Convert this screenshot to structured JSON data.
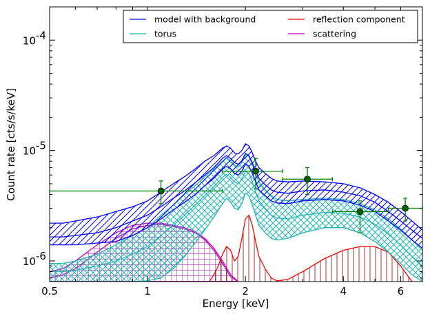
{
  "chart_data": {
    "type": "line",
    "xlabel": "Energy [keV]",
    "ylabel": "Count rate [cts/s/keV]",
    "xscale": "log",
    "yscale": "log",
    "xlim": [
      0.5,
      7.0
    ],
    "ylim": [
      6.5e-07,
      0.0002
    ],
    "x_ticks": [
      {
        "value": 0.5,
        "label": "0.5"
      },
      {
        "value": 1,
        "label": "1"
      },
      {
        "value": 2,
        "label": "2"
      },
      {
        "value": 4,
        "label": "4"
      },
      {
        "value": 6,
        "label": "6"
      }
    ],
    "y_ticks": [
      {
        "value": 1e-06,
        "base": "10",
        "exp": "-6"
      },
      {
        "value": 1e-05,
        "base": "10",
        "exp": "-5"
      },
      {
        "value": 0.0001,
        "base": "10",
        "exp": "-4"
      }
    ],
    "legend": {
      "placement": "top-right",
      "columns": 2,
      "entries": [
        {
          "label": "model with background",
          "color": "#0000ff"
        },
        {
          "label": "reflection component",
          "color": "#ff0000"
        },
        {
          "label": "torus",
          "color": "#1fb5b5"
        },
        {
          "label": "scattering",
          "color": "#c000c0"
        }
      ]
    },
    "series": [
      {
        "id": "model",
        "color": "#0000ff",
        "hatch": "diagonal",
        "x": [
          0.5,
          0.55,
          0.6,
          0.7,
          0.8,
          0.9,
          1.0,
          1.1,
          1.2,
          1.3,
          1.4,
          1.5,
          1.6,
          1.7,
          1.75,
          1.8,
          1.85,
          1.9,
          1.95,
          2.0,
          2.05,
          2.1,
          2.15,
          2.2,
          2.3,
          2.4,
          2.5,
          2.7,
          3.0,
          3.5,
          4.0,
          4.5,
          5.0,
          5.5,
          6.0,
          6.5,
          7.0
        ],
        "upper": [
          2.2e-06,
          2.2e-06,
          2.3e-06,
          2.5e-06,
          2.8e-06,
          3.1e-06,
          3.5e-06,
          4.2e-06,
          5e-06,
          5.8e-06,
          6.8e-06,
          8e-06,
          9e-06,
          1.05e-05,
          1.1e-05,
          1.05e-05,
          9.5e-06,
          9.3e-06,
          1e-05,
          1.15e-05,
          1.1e-05,
          9.5e-06,
          8e-06,
          7e-06,
          6.2e-06,
          5.6e-06,
          5.3e-06,
          5.2e-06,
          5.3e-06,
          5.2e-06,
          5e-06,
          4.6e-06,
          4e-06,
          3.4e-06,
          2.8e-06,
          2.3e-06,
          1.9e-06
        ],
        "lower": [
          1.4e-06,
          1.4e-06,
          1.4e-06,
          1.45e-06,
          1.5e-06,
          1.7e-06,
          2e-06,
          2.4e-06,
          2.9e-06,
          3.4e-06,
          4e-06,
          4.8e-06,
          5.6e-06,
          6.8e-06,
          7.2e-06,
          6.8e-06,
          6.2e-06,
          6e-06,
          6.5e-06,
          7.6e-06,
          7.2e-06,
          6.2e-06,
          5.2e-06,
          4.4e-06,
          3.9e-06,
          3.5e-06,
          3.35e-06,
          3.3e-06,
          3.5e-06,
          3.6e-06,
          3.5e-06,
          3.2e-06,
          2.8e-06,
          2.3e-06,
          1.9e-06,
          1.55e-06,
          1.3e-06
        ],
        "mid": [
          1.65e-06,
          1.65e-06,
          1.7e-06,
          1.8e-06,
          2e-06,
          2.3e-06,
          2.6e-06,
          3.1e-06,
          3.7e-06,
          4.3e-06,
          5.1e-06,
          6e-06,
          7e-06,
          8.5e-06,
          9e-06,
          8.5e-06,
          7.8e-06,
          7.5e-06,
          8.1e-06,
          9.4e-06,
          9e-06,
          7.7e-06,
          6.5e-06,
          5.6e-06,
          4.9e-06,
          4.4e-06,
          4.2e-06,
          4.1e-06,
          4.3e-06,
          4.4e-06,
          4.2e-06,
          3.9e-06,
          3.4e-06,
          2.8e-06,
          2.3e-06,
          1.9e-06,
          1.6e-06
        ]
      },
      {
        "id": "torus",
        "color": "#1fb5b5",
        "hatch": "cross",
        "x": [
          0.5,
          0.55,
          0.6,
          0.7,
          0.8,
          0.9,
          1.0,
          1.1,
          1.2,
          1.3,
          1.4,
          1.5,
          1.6,
          1.7,
          1.75,
          1.8,
          1.85,
          1.9,
          1.95,
          2.0,
          2.05,
          2.1,
          2.15,
          2.2,
          2.3,
          2.4,
          2.5,
          2.7,
          3.0,
          3.5,
          4.0,
          4.5,
          5.0,
          5.5,
          6.0,
          6.5,
          7.0
        ],
        "upper": [
          9.5e-07,
          9.5e-07,
          1e-06,
          1.15e-06,
          1.4e-06,
          1.7e-06,
          2e-06,
          2.6e-06,
          3.2e-06,
          4e-06,
          4.8e-06,
          5.8e-06,
          6.8e-06,
          8e-06,
          8.6e-06,
          8.1e-06,
          7.4e-06,
          7.1e-06,
          7.8e-06,
          9.2e-06,
          8.8e-06,
          7.5e-06,
          6.1e-06,
          5.2e-06,
          4.4e-06,
          3.9e-06,
          3.6e-06,
          3.5e-06,
          3.6e-06,
          3.7e-06,
          3.6e-06,
          3.3e-06,
          2.9e-06,
          2.4e-06,
          1.95e-06,
          1.55e-06,
          1.25e-06
        ],
        "lower": [
          6.5e-07,
          6.5e-07,
          6.5e-07,
          6.5e-07,
          6.5e-07,
          6.5e-07,
          6.6e-07,
          7e-07,
          8.5e-07,
          1.1e-06,
          1.45e-06,
          1.9e-06,
          2.5e-06,
          3.3e-06,
          3.7e-06,
          3.4e-06,
          3e-06,
          2.9e-06,
          3.3e-06,
          4.1e-06,
          3.9e-06,
          3.2e-06,
          2.6e-06,
          2.1e-06,
          1.8e-06,
          1.6e-06,
          1.55e-06,
          1.6e-06,
          1.8e-06,
          2e-06,
          2e-06,
          1.8e-06,
          1.5e-06,
          1.2e-06,
          9.5e-07,
          7.5e-07,
          6.5e-07
        ],
        "mid": [
          8e-07,
          8e-07,
          8.2e-07,
          9e-07,
          1e-06,
          1.15e-06,
          1.35e-06,
          1.7e-06,
          2.1e-06,
          2.6e-06,
          3.2e-06,
          3.9e-06,
          4.7e-06,
          5.7e-06,
          6.1e-06,
          5.7e-06,
          5.2e-06,
          5e-06,
          5.5e-06,
          6.5e-06,
          6.2e-06,
          5.2e-06,
          4.2e-06,
          3.5e-06,
          3e-06,
          2.6e-06,
          2.45e-06,
          2.4e-06,
          2.6e-06,
          2.75e-06,
          2.7e-06,
          2.5e-06,
          2.15e-06,
          1.75e-06,
          1.4e-06,
          1.1e-06,
          9e-07
        ]
      },
      {
        "id": "scattering",
        "color": "#c000c0",
        "hatch": "grid",
        "x": [
          0.5,
          0.55,
          0.6,
          0.7,
          0.8,
          0.9,
          1.0,
          1.1,
          1.2,
          1.3,
          1.4,
          1.5,
          1.6,
          1.7,
          1.8,
          1.9
        ],
        "upper": [
          8e-07,
          8.5e-07,
          1e-06,
          1.4e-06,
          1.8e-06,
          2.1e-06,
          2.2e-06,
          2.2e-06,
          2.1e-06,
          2e-06,
          1.85e-06,
          1.6e-06,
          1.3e-06,
          1e-06,
          7.5e-07,
          6.5e-07
        ],
        "lower": [
          6.5e-07,
          6.5e-07,
          6.5e-07,
          6.5e-07,
          6.5e-07,
          6.5e-07,
          6.5e-07,
          6.5e-07,
          6.5e-07,
          6.5e-07,
          6.5e-07,
          6.5e-07,
          6.5e-07,
          6.5e-07,
          6.5e-07,
          6.5e-07
        ],
        "mid": [
          7e-07,
          7.5e-07,
          8.5e-07,
          1.2e-06,
          1.6e-06,
          1.95e-06,
          2.1e-06,
          2.15e-06,
          2.05e-06,
          1.95e-06,
          1.8e-06,
          1.55e-06,
          1.25e-06,
          9.5e-07,
          7.2e-07,
          6.5e-07
        ]
      },
      {
        "id": "reflection",
        "color": "#ff0000",
        "hatch": "vertical",
        "hatch_color": "#a03030",
        "x": [
          1.55,
          1.6,
          1.65,
          1.7,
          1.75,
          1.8,
          1.85,
          1.9,
          1.95,
          2.0,
          2.05,
          2.1,
          2.15,
          2.2,
          2.3,
          2.4,
          2.5,
          2.7,
          3.0,
          3.5,
          4.0,
          4.5,
          5.0,
          5.5,
          6.0,
          6.5
        ],
        "upper": [
          6.5e-07,
          7.5e-07,
          9e-07,
          1.15e-06,
          1.35e-06,
          1.25e-06,
          1e-06,
          1.1e-06,
          1.6e-06,
          2.4e-06,
          2.6e-06,
          2.1e-06,
          1.5e-06,
          1.1e-06,
          8.5e-07,
          7e-07,
          6.6e-07,
          6.8e-07,
          8e-07,
          1.05e-06,
          1.25e-06,
          1.35e-06,
          1.35e-06,
          1.2e-06,
          9e-07,
          6.5e-07
        ]
      }
    ],
    "data_points": {
      "color": "#008000",
      "marker_color": "#006400",
      "points": [
        {
          "x": 1.1,
          "y": 4.3e-06,
          "xlo": 0.5,
          "xhi": 1.7,
          "ylo": 3.3e-06,
          "yhi": 5.3e-06
        },
        {
          "x": 2.15,
          "y": 6.5e-06,
          "xlo": 1.7,
          "xhi": 2.6,
          "ylo": 4.5e-06,
          "yhi": 8.5e-06
        },
        {
          "x": 3.1,
          "y": 5.5e-06,
          "xlo": 2.6,
          "xhi": 3.7,
          "ylo": 4e-06,
          "yhi": 7e-06
        },
        {
          "x": 4.5,
          "y": 2.8e-06,
          "xlo": 3.7,
          "xhi": 5.5,
          "ylo": 1.8e-06,
          "yhi": 3.5e-06
        },
        {
          "x": 6.2,
          "y": 3e-06,
          "xlo": 5.5,
          "xhi": 7.0,
          "ylo": 2.3e-06,
          "yhi": 3.7e-06
        }
      ]
    }
  }
}
